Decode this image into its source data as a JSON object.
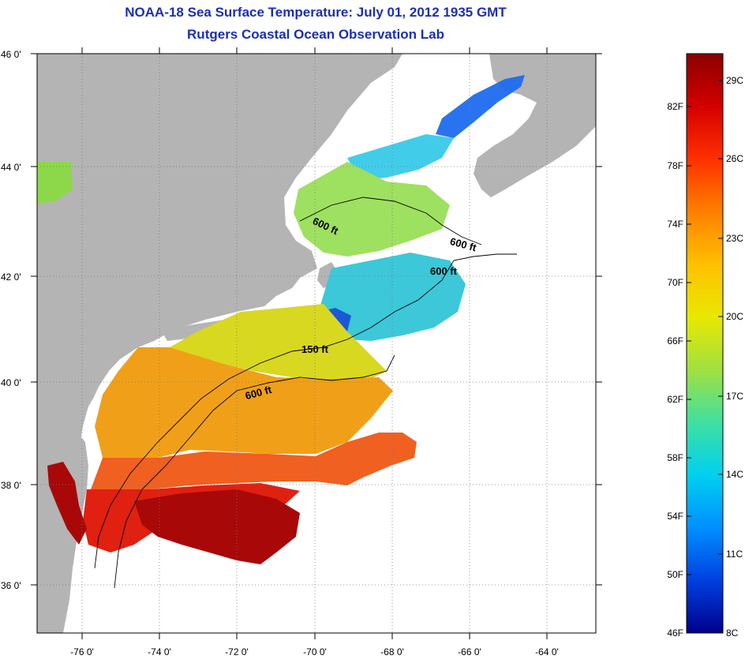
{
  "header": {
    "title": "NOAA-18 Sea Surface Temperature:  July 01, 2012 1935 GMT",
    "subtitle": "Rutgers Coastal Ocean Observation Lab"
  },
  "map": {
    "lon_range": [
      -77,
      -62.5
    ],
    "lat_range": [
      35,
      46
    ],
    "lon_tick_labels": [
      "-76 0'",
      "-74 0'",
      "-72 0'",
      "-70 0'",
      "-68 0'",
      "-66 0'",
      "-64 0'"
    ],
    "lat_tick_labels": [
      "46 0'",
      "44 0'",
      "42 0'",
      "40 0'",
      "38 0'",
      "36 0'"
    ],
    "land_color": "#b4b4b4",
    "no_data_color": "#ffffff",
    "grid": "dotted",
    "depth_labels": [
      {
        "text": "600 ft"
      },
      {
        "text": "600 ft"
      },
      {
        "text": "600 ft"
      },
      {
        "text": "150 ft"
      },
      {
        "text": "600 ft"
      }
    ]
  },
  "colorbar": {
    "fahrenheit_labels": [
      "82F",
      "78F",
      "74F",
      "70F",
      "66F",
      "62F",
      "58F",
      "54F",
      "50F",
      "46F"
    ],
    "celsius_labels": [
      "29C",
      "26C",
      "23C",
      "20C",
      "17C",
      "14C",
      "11C",
      "8C"
    ],
    "colors": [
      "#8b0000",
      "#d40000",
      "#ff3000",
      "#ff8000",
      "#ffc000",
      "#e8e800",
      "#a0e040",
      "#40e0a0",
      "#00d0f0",
      "#0090ff",
      "#0040e0",
      "#00008b"
    ]
  }
}
